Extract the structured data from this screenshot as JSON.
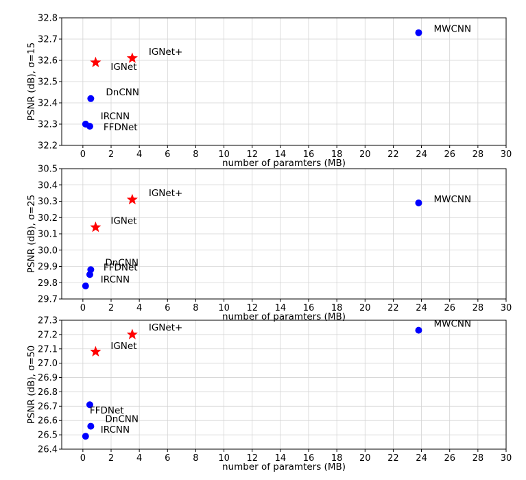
{
  "colors": {
    "baseline": "#0000ff",
    "ours": "#ff0000",
    "grid": "#d3d3d3",
    "frame": "#000000"
  },
  "chart_data": [
    {
      "type": "scatter",
      "xlabel": "number of paramters (MB)",
      "ylabel": "PSNR (dB), σ=15",
      "xlim": [
        -1.5,
        30
      ],
      "ylim": [
        32.2,
        32.8
      ],
      "xticks": [
        "0",
        "2",
        "4",
        "6",
        "8",
        "10",
        "12",
        "14",
        "16",
        "18",
        "20",
        "22",
        "24",
        "26",
        "28",
        "30"
      ],
      "yticks": [
        "32.2",
        "32.3",
        "32.4",
        "32.5",
        "32.6",
        "32.7",
        "32.8"
      ],
      "grid": true,
      "points": [
        {
          "label": "MWCNN",
          "x": 23.8,
          "y": 32.73,
          "marker": "circle"
        },
        {
          "label": "IGNet+",
          "x": 3.5,
          "y": 32.61,
          "marker": "star"
        },
        {
          "label": "IGNet",
          "x": 0.9,
          "y": 32.59,
          "marker": "star"
        },
        {
          "label": "DnCNN",
          "x": 0.56,
          "y": 32.42,
          "marker": "circle"
        },
        {
          "label": "IRCNN",
          "x": 0.19,
          "y": 32.3,
          "marker": "circle"
        },
        {
          "label": "FFDNet",
          "x": 0.49,
          "y": 32.29,
          "marker": "circle"
        }
      ]
    },
    {
      "type": "scatter",
      "xlabel": "number of paramters (MB)",
      "ylabel": "PSNR (dB), σ=25",
      "xlim": [
        -1.5,
        30
      ],
      "ylim": [
        29.7,
        30.5
      ],
      "xticks": [
        "0",
        "2",
        "4",
        "6",
        "8",
        "10",
        "12",
        "14",
        "16",
        "18",
        "20",
        "22",
        "24",
        "26",
        "28",
        "30"
      ],
      "yticks": [
        "29.7",
        "29.8",
        "29.9",
        "30.0",
        "30.1",
        "30.2",
        "30.3",
        "30.4",
        "30.5"
      ],
      "grid": true,
      "points": [
        {
          "label": "MWCNN",
          "x": 23.8,
          "y": 30.29,
          "marker": "circle"
        },
        {
          "label": "IGNet+",
          "x": 3.5,
          "y": 30.31,
          "marker": "star"
        },
        {
          "label": "IGNet",
          "x": 0.9,
          "y": 30.14,
          "marker": "star"
        },
        {
          "label": "DnCNN",
          "x": 0.56,
          "y": 29.88,
          "marker": "circle"
        },
        {
          "label": "FFDNet",
          "x": 0.49,
          "y": 29.85,
          "marker": "circle"
        },
        {
          "label": "IRCNN",
          "x": 0.19,
          "y": 29.78,
          "marker": "circle"
        }
      ]
    },
    {
      "type": "scatter",
      "xlabel": "number of paramters (MB)",
      "ylabel": "PSNR (dB), σ=50",
      "xlim": [
        -1.5,
        30
      ],
      "ylim": [
        26.4,
        27.3
      ],
      "xticks": [
        "0",
        "2",
        "4",
        "6",
        "8",
        "10",
        "12",
        "14",
        "16",
        "18",
        "20",
        "22",
        "24",
        "26",
        "28",
        "30"
      ],
      "yticks": [
        "26.4",
        "26.5",
        "26.6",
        "26.7",
        "26.8",
        "26.9",
        "27.0",
        "27.1",
        "27.2",
        "27.3"
      ],
      "grid": true,
      "points": [
        {
          "label": "MWCNN",
          "x": 23.8,
          "y": 27.23,
          "marker": "circle"
        },
        {
          "label": "IGNet+",
          "x": 3.5,
          "y": 27.2,
          "marker": "star"
        },
        {
          "label": "IGNet",
          "x": 0.9,
          "y": 27.08,
          "marker": "star"
        },
        {
          "label": "FFDNet",
          "x": 0.49,
          "y": 26.71,
          "marker": "circle"
        },
        {
          "label": "DnCNN",
          "x": 0.56,
          "y": 26.56,
          "marker": "circle"
        },
        {
          "label": "IRCNN",
          "x": 0.19,
          "y": 26.49,
          "marker": "circle"
        }
      ]
    }
  ]
}
